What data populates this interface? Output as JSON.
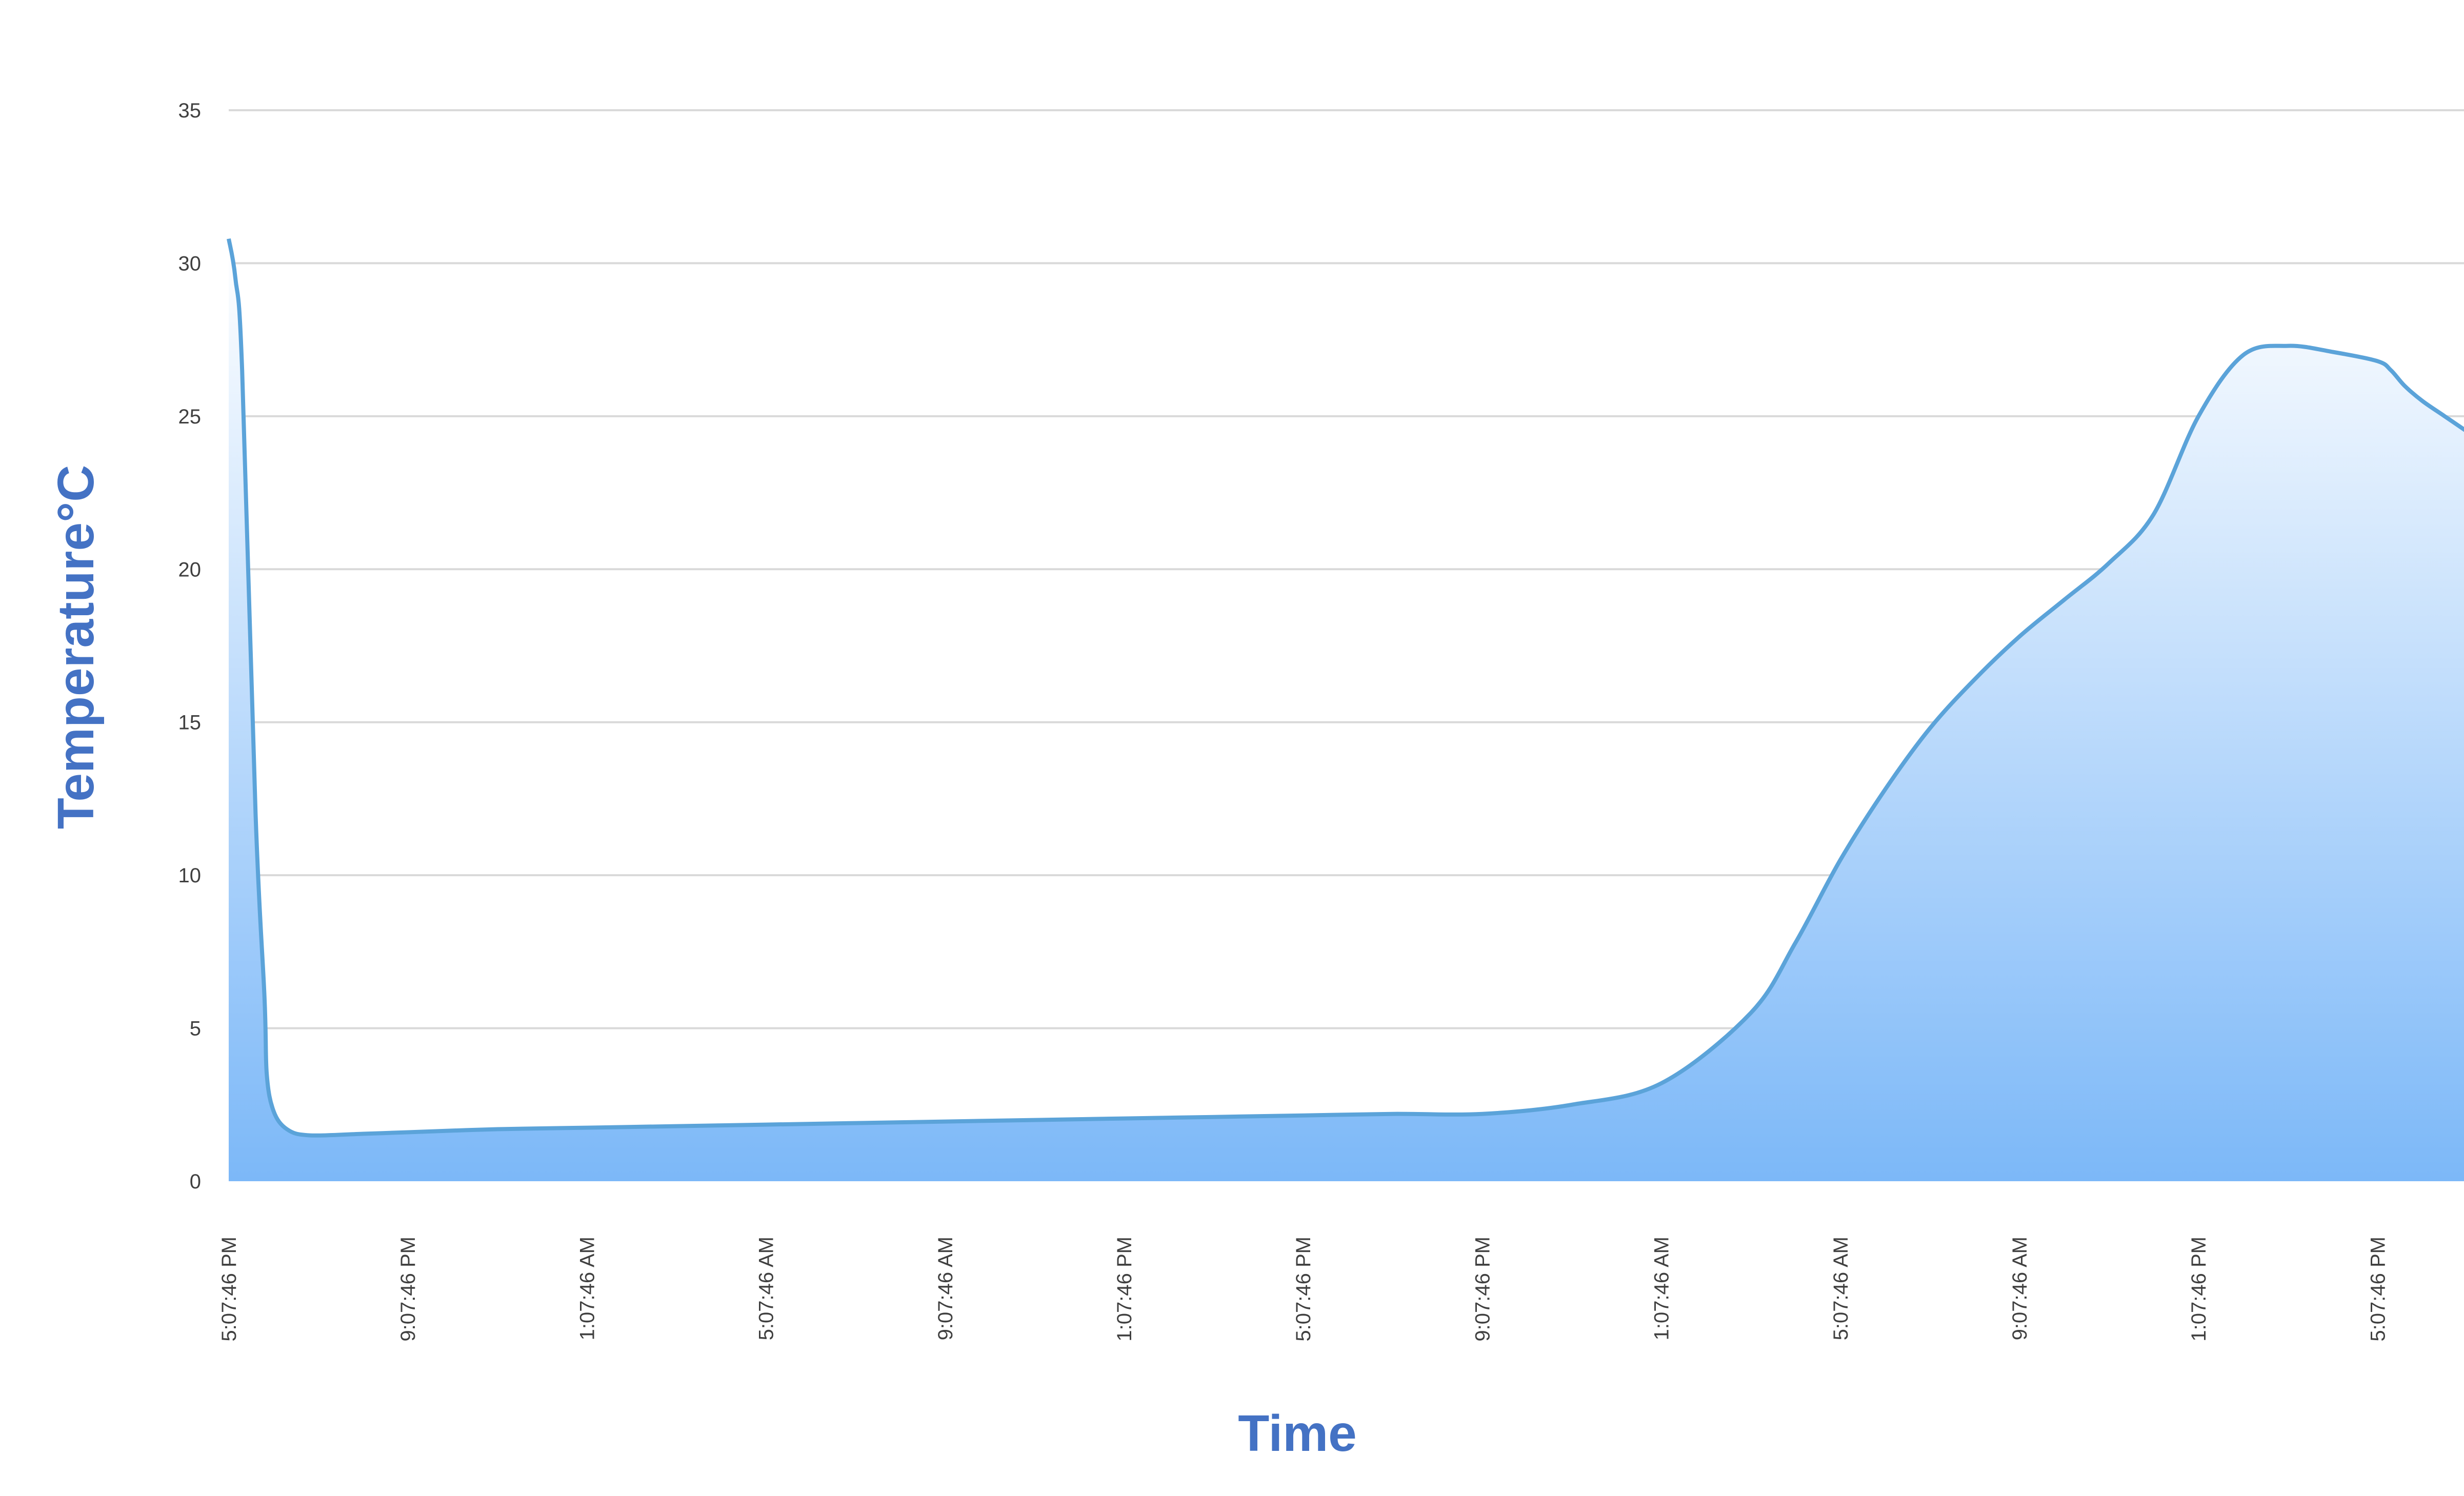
{
  "chart_data": {
    "type": "area",
    "xlabel": "Time",
    "ylabel": "Temperature°C",
    "ylim": [
      0,
      35
    ],
    "yticks": [
      0,
      5,
      10,
      15,
      20,
      25,
      30,
      35
    ],
    "grid": true,
    "xticks": [
      "5:07:46 PM",
      "9:07:46 PM",
      "1:07:46 AM",
      "5:07:46 AM",
      "9:07:46 AM",
      "1:07:46 PM",
      "5:07:46 PM",
      "9:07:46 PM",
      "1:07:46 AM",
      "5:07:46 AM",
      "9:07:46 AM",
      "1:07:46 PM",
      "5:07:46 PM"
    ],
    "x_interval_hours": 4,
    "series": [
      {
        "color": "#5ba3d9",
        "fill_top_color": "#ffffff",
        "fill_bottom_color": "#7cb8f8",
        "x_hours": [
          0,
          0.15,
          0.3,
          0.6,
          0.8,
          0.85,
          1.0,
          1.3,
          1.8,
          3,
          4,
          6,
          8,
          10,
          12,
          14,
          16,
          18,
          20,
          22,
          24,
          26,
          28,
          30,
          32,
          34,
          35,
          36,
          37,
          38,
          39,
          40,
          41,
          42,
          43,
          44,
          45,
          46,
          47,
          48,
          48.3,
          48.6,
          49,
          49.5,
          50
        ],
        "y": [
          30.8,
          29.5,
          26.5,
          12,
          6,
          3.5,
          2.3,
          1.7,
          1.5,
          1.55,
          1.6,
          1.7,
          1.75,
          1.8,
          1.85,
          1.9,
          1.95,
          2.0,
          2.05,
          2.1,
          2.15,
          2.2,
          2.2,
          2.5,
          3.2,
          5.5,
          7.8,
          10.5,
          12.8,
          14.8,
          16.4,
          17.8,
          19.0,
          20.2,
          21.8,
          25,
          27.0,
          27.3,
          27.1,
          26.8,
          26.5,
          26.0,
          25.5,
          25.0,
          24.5
        ]
      }
    ]
  }
}
